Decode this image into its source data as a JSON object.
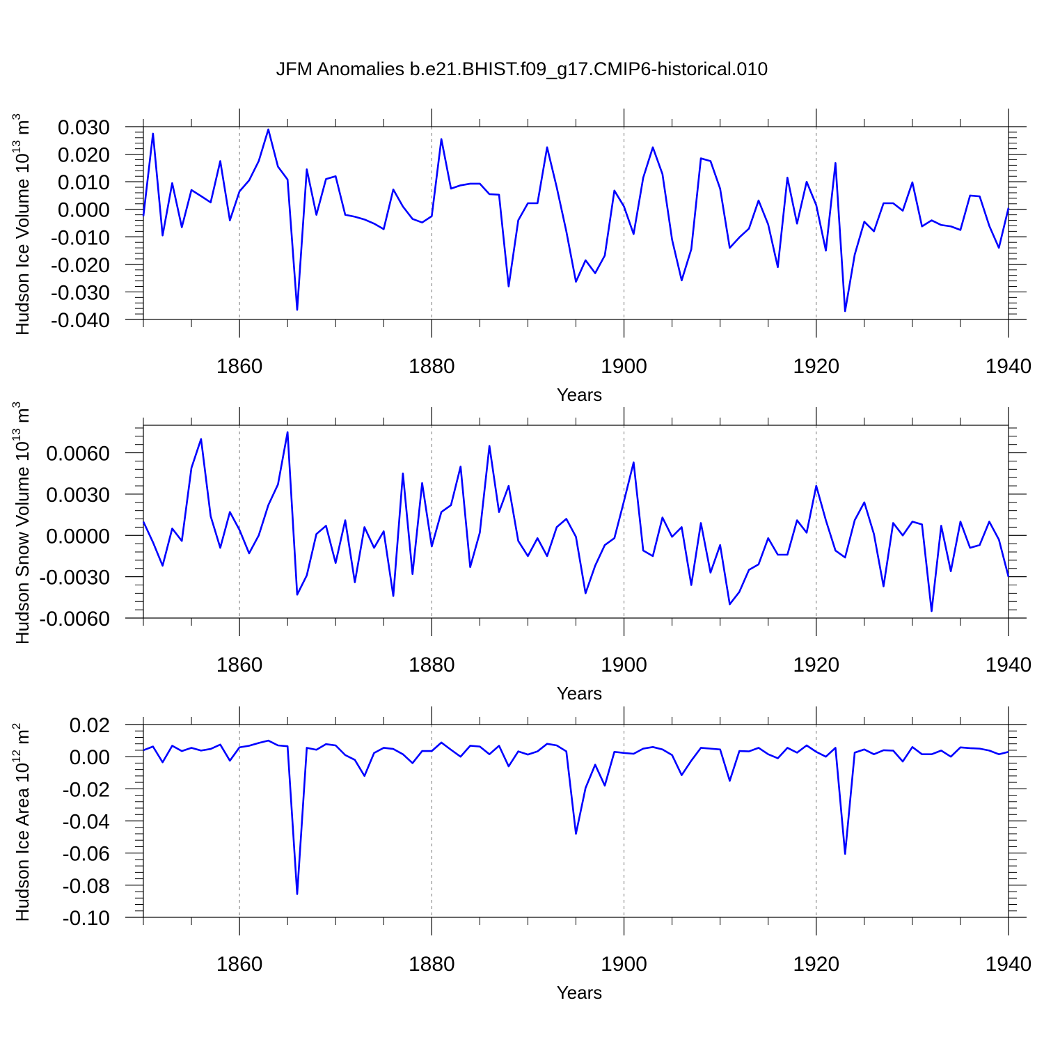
{
  "title": "JFM Anomalies b.e21.BHIST.f09_g17.CMIP6-historical.010",
  "colors": {
    "line": "#0000ff",
    "axis": "#000000",
    "grid": "#777777"
  },
  "chart_data": [
    {
      "type": "line",
      "ylabel": "Hudson Ice Volume 10",
      "ylabel_exp": "13",
      "ylabel_unit": " m",
      "ylabel_unit_exp": "3",
      "xlabel": "Years",
      "xlim": [
        1850,
        1940
      ],
      "ylim": [
        -0.04,
        0.03
      ],
      "yticks": [
        0.03,
        0.02,
        0.01,
        0.0,
        -0.01,
        -0.02,
        -0.03,
        -0.04
      ],
      "ytick_labels": [
        "0.030",
        "0.020",
        "0.010",
        "0.000",
        "-0.010",
        "-0.020",
        "-0.030",
        "-0.040"
      ],
      "xticks": [
        1860,
        1880,
        1900,
        1920,
        1940
      ],
      "xtick_labels": [
        "1860",
        "1880",
        "1900",
        "1920",
        "1940"
      ],
      "x_start": 1850,
      "values": [
        -0.0025,
        0.0275,
        -0.0095,
        0.0095,
        -0.0065,
        0.007,
        0.0048,
        0.0025,
        0.0175,
        -0.004,
        0.0065,
        0.0105,
        0.0175,
        0.029,
        0.0155,
        0.0108,
        -0.0365,
        0.0145,
        -0.002,
        0.011,
        0.012,
        -0.002,
        -0.0027,
        -0.0037,
        -0.0052,
        -0.0072,
        0.0072,
        0.001,
        -0.0035,
        -0.0048,
        -0.0025,
        0.0255,
        0.0075,
        0.0087,
        0.0093,
        0.0093,
        0.0055,
        0.0053,
        -0.028,
        -0.004,
        0.0022,
        0.0022,
        0.0225,
        0.008,
        -0.008,
        -0.0263,
        -0.0185,
        -0.0232,
        -0.0168,
        0.0068,
        0.001,
        -0.009,
        0.0115,
        0.0225,
        0.0128,
        -0.011,
        -0.0258,
        -0.0145,
        0.0185,
        0.0175,
        0.0075,
        -0.014,
        -0.0102,
        -0.007,
        0.0032,
        -0.0055,
        -0.021,
        0.0115,
        -0.0052,
        0.01,
        0.0015,
        -0.015,
        0.0168,
        -0.037,
        -0.0165,
        -0.0045,
        -0.008,
        0.0022,
        0.0022,
        -0.0005,
        0.0098,
        -0.0062,
        -0.004,
        -0.0057,
        -0.0062,
        -0.0075,
        0.005,
        0.0047,
        -0.006,
        -0.014,
        0.0005
      ]
    },
    {
      "type": "line",
      "ylabel": "Hudson Snow Volume 10",
      "ylabel_exp": "13",
      "ylabel_unit": " m",
      "ylabel_unit_exp": "3",
      "xlabel": "Years",
      "xlim": [
        1850,
        1940
      ],
      "ylim": [
        -0.006,
        0.008
      ],
      "yticks": [
        0.006,
        0.003,
        0.0,
        -0.003,
        -0.006
      ],
      "ytick_labels": [
        "0.0060",
        "0.0030",
        "0.0000",
        "-0.0030",
        "-0.0060"
      ],
      "xticks": [
        1860,
        1880,
        1900,
        1920,
        1940
      ],
      "xtick_labels": [
        "1860",
        "1880",
        "1900",
        "1920",
        "1940"
      ],
      "x_start": 1850,
      "values": [
        0.001,
        -0.0005,
        -0.0022,
        0.0005,
        -0.0004,
        0.0049,
        0.007,
        0.0014,
        -0.0009,
        0.0017,
        0.0004,
        -0.0013,
        0.0,
        0.0022,
        0.0037,
        0.0075,
        -0.0043,
        -0.0029,
        0.0001,
        0.0007,
        -0.002,
        0.0011,
        -0.0034,
        0.0006,
        -0.0009,
        0.0003,
        -0.0044,
        0.0045,
        -0.0028,
        0.0038,
        -0.0008,
        0.0017,
        0.0022,
        0.005,
        -0.0023,
        0.0002,
        0.0065,
        0.0017,
        0.0036,
        -0.0004,
        -0.0015,
        -0.0002,
        -0.0015,
        0.0006,
        0.0012,
        -0.0001,
        -0.0042,
        -0.0022,
        -0.0007,
        -0.0002,
        0.0025,
        0.0053,
        -0.0011,
        -0.0015,
        0.0013,
        -0.0001,
        0.0006,
        -0.0036,
        0.0009,
        -0.0027,
        -0.0007,
        -0.005,
        -0.0041,
        -0.0025,
        -0.0021,
        -0.0002,
        -0.0014,
        -0.0014,
        0.0011,
        0.0002,
        0.0036,
        0.0011,
        -0.0011,
        -0.0016,
        0.0011,
        0.0024,
        0.0001,
        -0.0037,
        0.0009,
        0.0,
        0.001,
        0.0008,
        -0.0055,
        0.0007,
        -0.0026,
        0.001,
        -0.0009,
        -0.0007,
        0.001,
        -0.0003,
        -0.003
      ]
    },
    {
      "type": "line",
      "ylabel": "Hudson Ice Area 10",
      "ylabel_exp": "12",
      "ylabel_unit": " m",
      "ylabel_unit_exp": "2",
      "xlabel": "Years",
      "xlim": [
        1850,
        1940
      ],
      "ylim": [
        -0.1,
        0.02
      ],
      "yticks": [
        0.02,
        0.0,
        -0.02,
        -0.04,
        -0.06,
        -0.08,
        -0.1
      ],
      "ytick_labels": [
        "0.02",
        "0.00",
        "-0.02",
        "-0.04",
        "-0.06",
        "-0.08",
        "-0.10"
      ],
      "xticks": [
        1860,
        1880,
        1900,
        1920,
        1940
      ],
      "xtick_labels": [
        "1860",
        "1880",
        "1900",
        "1920",
        "1940"
      ],
      "x_start": 1850,
      "values": [
        0.004,
        0.0063,
        -0.0035,
        0.0068,
        0.0035,
        0.0055,
        0.0038,
        0.0048,
        0.0075,
        -0.0025,
        0.0058,
        0.0068,
        0.0085,
        0.01,
        0.007,
        0.0065,
        -0.0855,
        0.0055,
        0.0043,
        0.0078,
        0.007,
        0.001,
        -0.002,
        -0.012,
        0.0023,
        0.0055,
        0.0048,
        0.0015,
        -0.004,
        0.0035,
        0.0035,
        0.0088,
        0.0043,
        0.0,
        0.0068,
        0.0063,
        0.0015,
        0.0068,
        -0.006,
        0.0033,
        0.0013,
        0.0033,
        0.008,
        0.007,
        0.0033,
        -0.048,
        -0.0195,
        -0.005,
        -0.018,
        0.003,
        0.0023,
        0.0018,
        0.005,
        0.006,
        0.0045,
        0.001,
        -0.0115,
        -0.0025,
        0.0055,
        0.005,
        0.0045,
        -0.015,
        0.0035,
        0.0033,
        0.0055,
        0.0015,
        -0.001,
        0.0055,
        0.0025,
        0.007,
        0.003,
        0.0,
        0.0055,
        -0.0605,
        0.0025,
        0.0045,
        0.0015,
        0.004,
        0.0038,
        -0.003,
        0.006,
        0.0015,
        0.0015,
        0.0038,
        0.0,
        0.0058,
        0.0053,
        0.005,
        0.0038,
        0.0015,
        0.003
      ]
    }
  ]
}
